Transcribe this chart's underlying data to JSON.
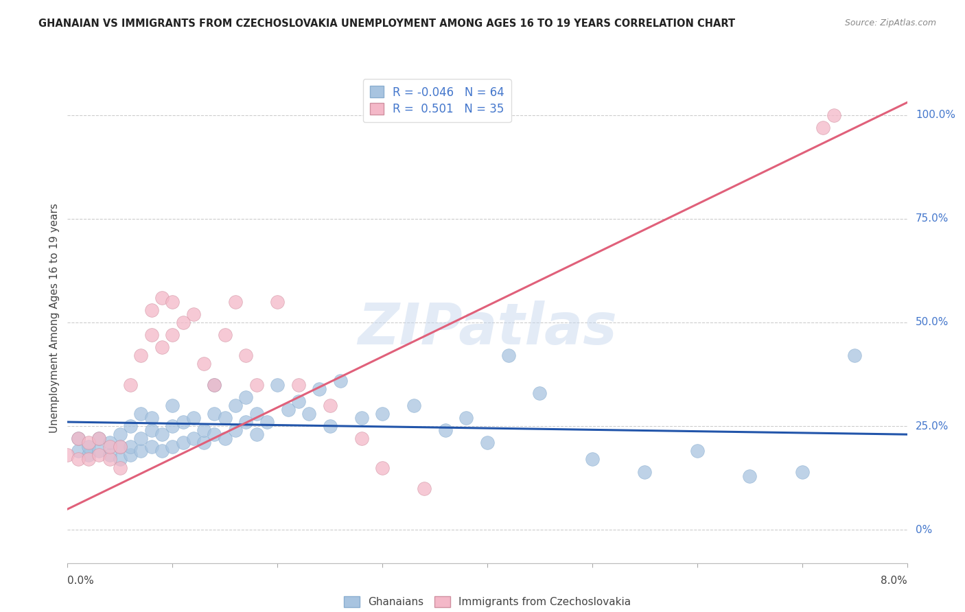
{
  "title": "GHANAIAN VS IMMIGRANTS FROM CZECHOSLOVAKIA UNEMPLOYMENT AMONG AGES 16 TO 19 YEARS CORRELATION CHART",
  "source": "Source: ZipAtlas.com",
  "ylabel": "Unemployment Among Ages 16 to 19 years",
  "right_ytick_vals": [
    0,
    25,
    50,
    75,
    100
  ],
  "right_ytick_labels": [
    "0%",
    "25.0%",
    "50.0%",
    "75.0%",
    "100.0%"
  ],
  "legend_r1": "R = -0.046",
  "legend_n1": "N = 64",
  "legend_r2": "R =  0.501",
  "legend_n2": "N = 35",
  "blue_color": "#a8c4e0",
  "pink_color": "#f4b8c8",
  "blue_line_color": "#2255aa",
  "pink_line_color": "#e0607a",
  "watermark": "ZIPatlas",
  "background_color": "#ffffff",
  "blue_scatter_x": [
    0.001,
    0.001,
    0.002,
    0.002,
    0.003,
    0.003,
    0.004,
    0.004,
    0.005,
    0.005,
    0.005,
    0.006,
    0.006,
    0.006,
    0.007,
    0.007,
    0.007,
    0.008,
    0.008,
    0.008,
    0.009,
    0.009,
    0.01,
    0.01,
    0.01,
    0.011,
    0.011,
    0.012,
    0.012,
    0.013,
    0.013,
    0.014,
    0.014,
    0.014,
    0.015,
    0.015,
    0.016,
    0.016,
    0.017,
    0.017,
    0.018,
    0.018,
    0.019,
    0.02,
    0.021,
    0.022,
    0.023,
    0.024,
    0.025,
    0.026,
    0.028,
    0.03,
    0.033,
    0.036,
    0.038,
    0.04,
    0.042,
    0.045,
    0.05,
    0.055,
    0.06,
    0.065,
    0.07,
    0.075
  ],
  "blue_scatter_y": [
    19,
    22,
    18,
    20,
    19,
    22,
    18,
    21,
    17,
    20,
    23,
    18,
    20,
    25,
    19,
    22,
    28,
    20,
    24,
    27,
    19,
    23,
    20,
    25,
    30,
    21,
    26,
    22,
    27,
    21,
    24,
    23,
    28,
    35,
    22,
    27,
    24,
    30,
    26,
    32,
    23,
    28,
    26,
    35,
    29,
    31,
    28,
    34,
    25,
    36,
    27,
    28,
    30,
    24,
    27,
    21,
    42,
    33,
    17,
    14,
    19,
    13,
    14,
    42
  ],
  "pink_scatter_x": [
    0.0,
    0.001,
    0.001,
    0.002,
    0.002,
    0.003,
    0.003,
    0.004,
    0.004,
    0.005,
    0.005,
    0.006,
    0.007,
    0.008,
    0.008,
    0.009,
    0.009,
    0.01,
    0.01,
    0.011,
    0.012,
    0.013,
    0.014,
    0.015,
    0.016,
    0.017,
    0.018,
    0.02,
    0.022,
    0.025,
    0.028,
    0.03,
    0.034,
    0.072,
    0.073
  ],
  "pink_scatter_y": [
    18,
    17,
    22,
    17,
    21,
    18,
    22,
    17,
    20,
    15,
    20,
    35,
    42,
    47,
    53,
    44,
    56,
    47,
    55,
    50,
    52,
    40,
    35,
    47,
    55,
    42,
    35,
    55,
    35,
    30,
    22,
    15,
    10,
    97,
    100
  ],
  "blue_trendline_x": [
    0.0,
    0.08
  ],
  "blue_trendline_y": [
    26.0,
    23.0
  ],
  "pink_trendline_x": [
    0.0,
    0.08
  ],
  "pink_trendline_y": [
    5,
    103
  ],
  "xmin": 0.0,
  "xmax": 0.08,
  "ymin": -8,
  "ymax": 110,
  "x_tick_positions": [
    0.0,
    0.01,
    0.02,
    0.03,
    0.04,
    0.05,
    0.06,
    0.07,
    0.08
  ]
}
